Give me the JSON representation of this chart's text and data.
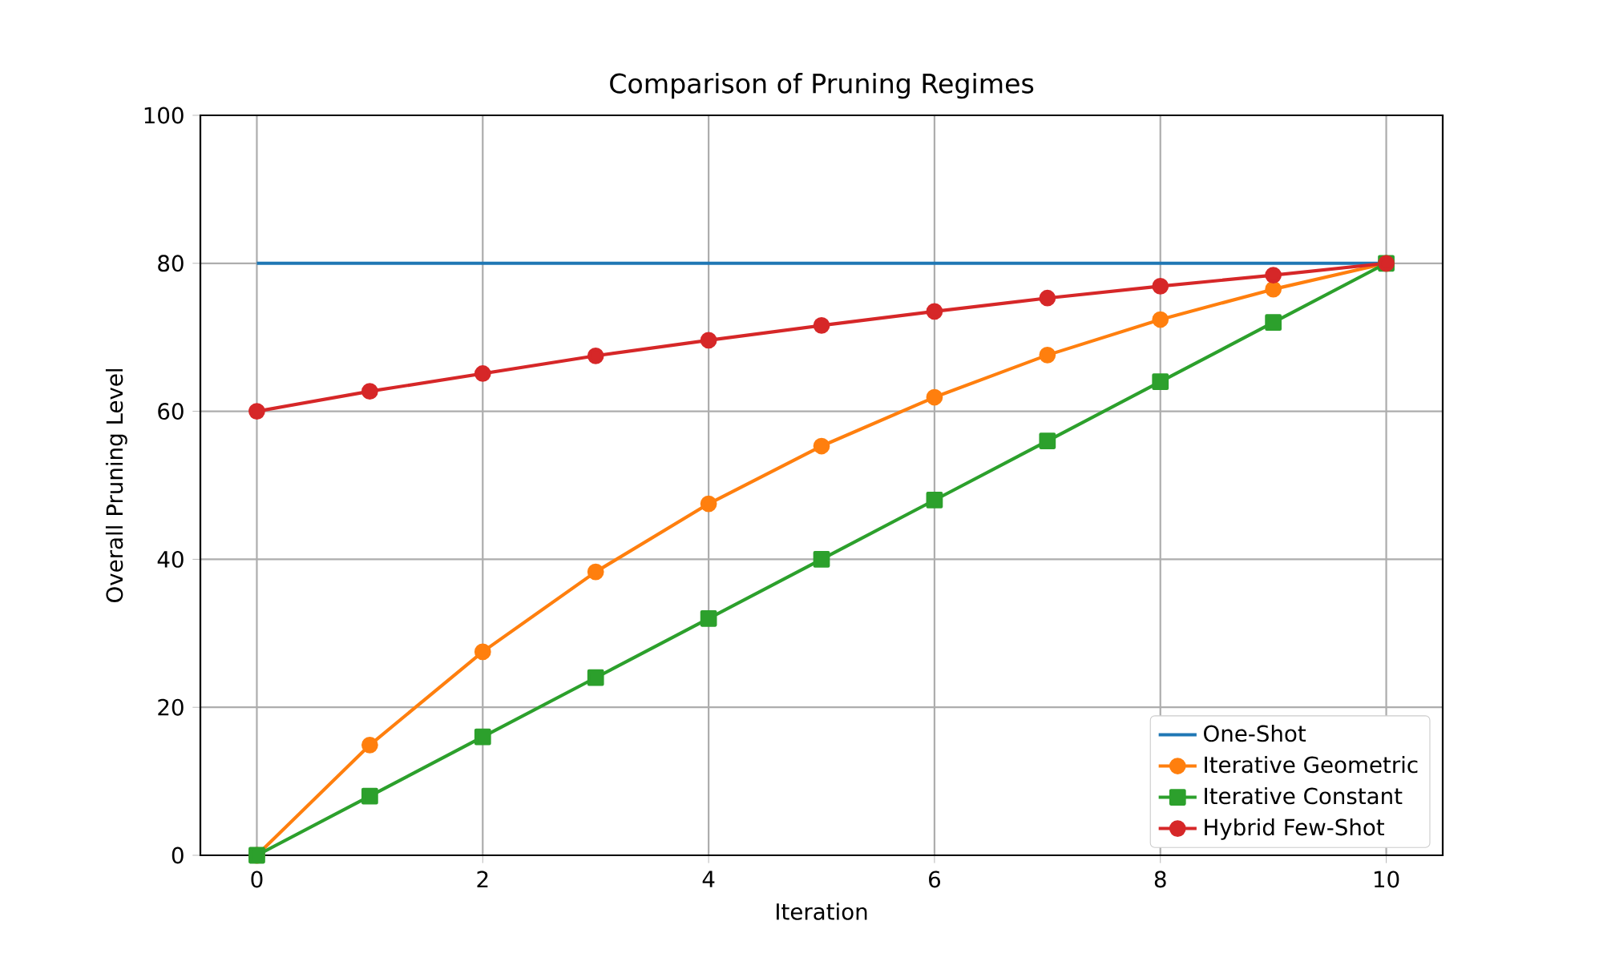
{
  "chart_data": {
    "type": "line",
    "title": "Comparison of Pruning Regimes",
    "xlabel": "Iteration",
    "ylabel": "Overall Pruning Level",
    "x": [
      0,
      1,
      2,
      3,
      4,
      5,
      6,
      7,
      8,
      9,
      10
    ],
    "series": [
      {
        "name": "One-Shot",
        "color": "#1f77b4",
        "marker": "none",
        "values": [
          80,
          80,
          80,
          80,
          80,
          80,
          80,
          80,
          80,
          80,
          80
        ]
      },
      {
        "name": "Iterative Geometric",
        "color": "#ff7f0e",
        "marker": "circle",
        "values": [
          0,
          14.9,
          27.5,
          38.3,
          47.5,
          55.3,
          61.9,
          67.6,
          72.4,
          76.5,
          80
        ]
      },
      {
        "name": "Iterative Constant",
        "color": "#2ca02c",
        "marker": "square",
        "values": [
          0,
          8,
          16,
          24,
          32,
          40,
          48,
          56,
          64,
          72,
          80
        ]
      },
      {
        "name": "Hybrid Few-Shot",
        "color": "#d62728",
        "marker": "circle",
        "values": [
          60,
          62.7,
          65.1,
          67.5,
          69.6,
          71.6,
          73.5,
          75.3,
          76.9,
          78.4,
          80
        ]
      }
    ],
    "xlim": [
      -0.5,
      10.5
    ],
    "xticks": [
      0,
      2,
      4,
      6,
      8,
      10
    ],
    "ylim": [
      0,
      100
    ],
    "yticks": [
      0,
      20,
      40,
      60,
      80,
      100
    ],
    "grid": true,
    "legend": "bottom right"
  }
}
